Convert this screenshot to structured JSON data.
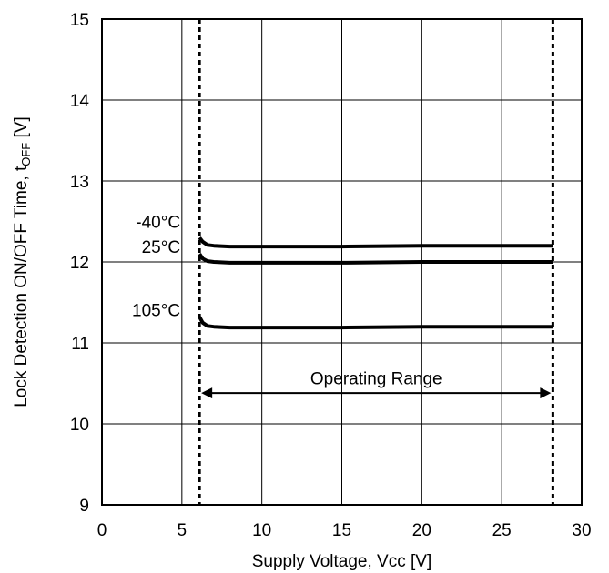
{
  "chart_data": {
    "type": "line",
    "xlabel": "Supply Voltage, Vcc [V]",
    "ylabel_main": "Lock Detection ON/OFF Time, t",
    "ylabel_sub": "OFF",
    "ylabel_unit": " [V]",
    "xlim": [
      0,
      30
    ],
    "ylim": [
      9,
      15
    ],
    "x_ticks": [
      "0",
      "5",
      "10",
      "15",
      "20",
      "25",
      "30"
    ],
    "y_ticks": [
      "9",
      "10",
      "11",
      "12",
      "13",
      "14",
      "15"
    ],
    "grid": true,
    "series": [
      {
        "name": "-40°C",
        "x": [
          6.1,
          6.3,
          6.6,
          7.0,
          8.0,
          10,
          15,
          20,
          25,
          28.2
        ],
        "y": [
          12.3,
          12.25,
          12.21,
          12.2,
          12.19,
          12.19,
          12.19,
          12.2,
          12.2,
          12.2
        ]
      },
      {
        "name": "25°C",
        "x": [
          6.1,
          6.3,
          6.6,
          7.0,
          8.0,
          10,
          15,
          20,
          25,
          28.2
        ],
        "y": [
          12.1,
          12.04,
          12.01,
          12.0,
          11.99,
          11.99,
          11.99,
          12.0,
          12.0,
          12.0
        ]
      },
      {
        "name": "105°C",
        "x": [
          6.1,
          6.3,
          6.6,
          7.0,
          8.0,
          10,
          15,
          20,
          25,
          28.2
        ],
        "y": [
          11.32,
          11.25,
          11.21,
          11.2,
          11.19,
          11.19,
          11.19,
          11.2,
          11.2,
          11.2
        ]
      }
    ],
    "series_label_positions": [
      {
        "name": "-40°C",
        "x": 4.9,
        "y": 12.5
      },
      {
        "name": "25°C",
        "x": 4.9,
        "y": 12.19
      },
      {
        "name": "105°C",
        "x": 4.9,
        "y": 11.41
      }
    ],
    "operating_range": {
      "label": "Operating Range",
      "x_min": 6.1,
      "x_max": 28.2,
      "arrow_y": 10.38,
      "label_y": 10.57
    }
  }
}
